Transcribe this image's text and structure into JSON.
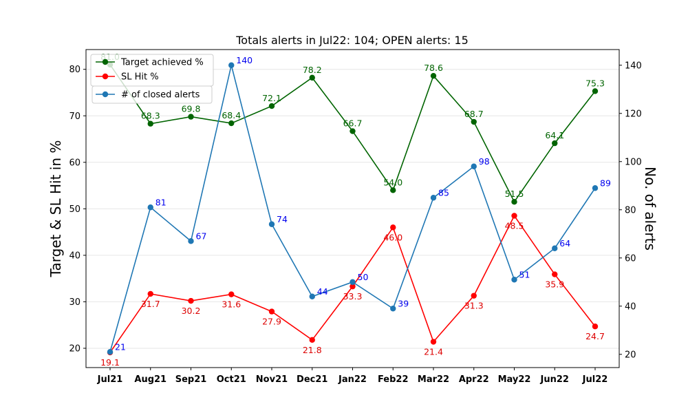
{
  "chart_data": {
    "type": "line",
    "title": "Totals alerts in Jul22: 104; OPEN alerts: 15",
    "ylabel_left": "Target & SL Hit in %",
    "ylabel_right": "No. of alerts",
    "categories": [
      "Jul21",
      "Aug21",
      "Sep21",
      "Oct21",
      "Nov21",
      "Dec21",
      "Jan22",
      "Feb22",
      "Mar22",
      "Apr22",
      "May22",
      "Jun22",
      "Jul22"
    ],
    "ylim_left": [
      15.85,
      84.25
    ],
    "yticks_left": [
      20,
      30,
      40,
      50,
      60,
      70,
      80
    ],
    "ylim_right": [
      14.5,
      146.5
    ],
    "yticks_right": [
      20,
      40,
      60,
      80,
      100,
      120,
      140
    ],
    "grid": "horizontal",
    "legend_position": "top-left",
    "series": [
      {
        "name": "Target achieved %",
        "axis": "left",
        "color": "#006400",
        "values": [
          81.0,
          68.3,
          69.8,
          68.4,
          72.1,
          78.2,
          66.7,
          54.0,
          78.6,
          68.7,
          51.5,
          64.1,
          75.3
        ],
        "labels": [
          "81.0",
          "68.3",
          "69.8",
          "68.4",
          "72.1",
          "78.2",
          "66.7",
          "54.0",
          "78.6",
          "68.7",
          "51.5",
          "64.1",
          "75.3"
        ],
        "label_color": "#006400",
        "label_pos": "above"
      },
      {
        "name": "SL Hit %",
        "axis": "left",
        "color": "#ff0000",
        "values": [
          19.1,
          31.7,
          30.2,
          31.6,
          27.9,
          21.8,
          33.3,
          46.0,
          21.4,
          31.3,
          48.5,
          35.9,
          24.7
        ],
        "labels": [
          "19.1",
          "31.7",
          "30.2",
          "31.6",
          "27.9",
          "21.8",
          "33.3",
          "46.0",
          "21.4",
          "31.3",
          "48.5",
          "35.9",
          "24.7"
        ],
        "label_color": "#dd0000",
        "label_pos": "below"
      },
      {
        "name": "# of closed alerts",
        "axis": "right",
        "color": "#1f77b4",
        "values": [
          21,
          81,
          67,
          140,
          74,
          44,
          50,
          39,
          85,
          98,
          51,
          64,
          89
        ],
        "labels": [
          "21",
          "81",
          "67",
          "140",
          "74",
          "44",
          "50",
          "39",
          "85",
          "98",
          "51",
          "64",
          "89"
        ],
        "label_color": "#0000ee",
        "label_pos": "right"
      }
    ]
  }
}
